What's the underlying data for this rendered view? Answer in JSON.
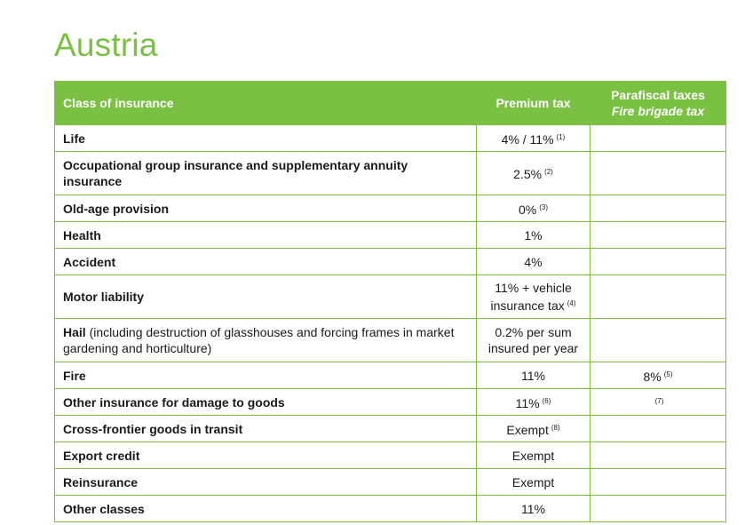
{
  "title": "Austria",
  "table": {
    "headers": {
      "class_of_insurance": "Class of insurance",
      "premium_tax": "Premium tax",
      "parafiscal_taxes": "Parafiscal taxes",
      "fire_brigade_tax": "Fire brigade tax"
    },
    "rows": [
      {
        "label": "Life",
        "premium": "4% / 11%",
        "premium_note": "(1)",
        "parafiscal": "",
        "parafiscal_note": ""
      },
      {
        "label": "Occupational group insurance and supplementary annuity insurance",
        "premium": "2.5%",
        "premium_note": "(2)",
        "parafiscal": "",
        "parafiscal_note": ""
      },
      {
        "label": "Old-age provision",
        "premium": "0%",
        "premium_note": "(3)",
        "parafiscal": "",
        "parafiscal_note": ""
      },
      {
        "label": "Health",
        "premium": "1%",
        "premium_note": "",
        "parafiscal": "",
        "parafiscal_note": ""
      },
      {
        "label": "Accident",
        "premium": "4%",
        "premium_note": "",
        "parafiscal": "",
        "parafiscal_note": ""
      },
      {
        "label": "Motor liability",
        "premium": "11% + vehicle insurance tax",
        "premium_note": "(4)",
        "parafiscal": "",
        "parafiscal_note": ""
      },
      {
        "label": "Hail",
        "label_note": "(including destruction of glasshouses and forcing frames in market gardening and horticulture)",
        "premium": "0.2% per sum insured per year",
        "premium_note": "",
        "parafiscal": "",
        "parafiscal_note": ""
      },
      {
        "label": "Fire",
        "premium": "11%",
        "premium_note": "",
        "parafiscal": "8%",
        "parafiscal_note": "(5)"
      },
      {
        "label": "Other insurance for damage to goods",
        "premium": "11%",
        "premium_note": "(6)",
        "parafiscal": "",
        "parafiscal_note": "(7)"
      },
      {
        "label": "Cross-frontier goods in transit",
        "premium": "Exempt",
        "premium_note": "(8)",
        "parafiscal": "",
        "parafiscal_note": ""
      },
      {
        "label": "Export credit",
        "premium": "Exempt",
        "premium_note": "",
        "parafiscal": "",
        "parafiscal_note": ""
      },
      {
        "label": "Reinsurance",
        "premium": "Exempt",
        "premium_note": "",
        "parafiscal": "",
        "parafiscal_note": ""
      },
      {
        "label": "Other classes",
        "premium": "11%",
        "premium_note": "",
        "parafiscal": "",
        "parafiscal_note": ""
      }
    ]
  },
  "colors": {
    "accent": "#7ac143",
    "header_text": "#ffffff",
    "body_text": "#1a1a1a"
  }
}
